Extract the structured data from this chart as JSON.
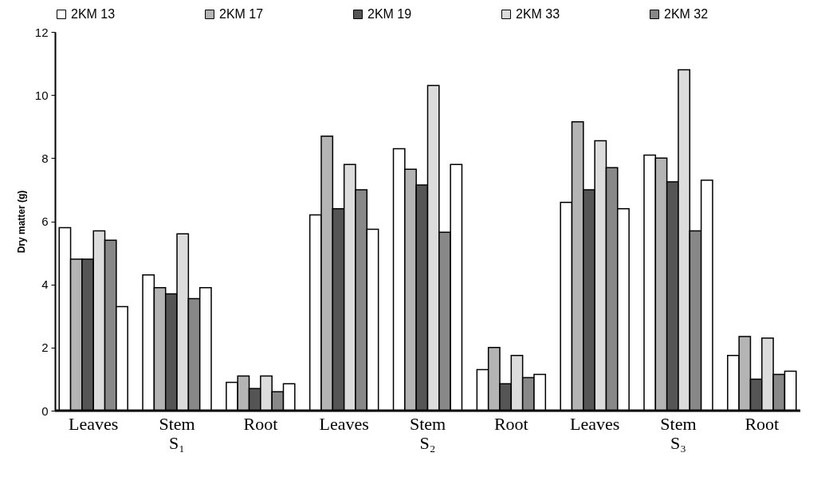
{
  "chart_data": {
    "type": "bar",
    "ylabel": "Dry matter (g)",
    "categories": [
      "Leaves",
      "Stem",
      "Root",
      "Leaves",
      "Stem",
      "Root",
      "Leaves",
      "Stem",
      "Root"
    ],
    "annotations": [
      "S₁",
      "S₂",
      "S₃"
    ],
    "series": [
      {
        "name": "2KM 13",
        "color": "#ffffff",
        "values": [
          5.8,
          4.3,
          0.9,
          6.2,
          8.3,
          1.3,
          6.6,
          8.1,
          1.75
        ]
      },
      {
        "name": "2KM 17",
        "color": "#b4b4b4",
        "values": [
          4.8,
          3.9,
          1.1,
          8.7,
          7.65,
          2.0,
          9.15,
          8.0,
          2.35
        ]
      },
      {
        "name": "2KM 19",
        "color": "#555555",
        "values": [
          4.8,
          3.7,
          0.7,
          6.4,
          7.15,
          0.85,
          7.0,
          7.25,
          1.0
        ]
      },
      {
        "name": "2KM 33",
        "color": "#dcdcdc",
        "values": [
          5.7,
          5.6,
          1.1,
          7.8,
          10.3,
          1.75,
          8.55,
          10.8,
          2.3
        ]
      },
      {
        "name": "2KM 32",
        "color": "#888888",
        "values": [
          5.4,
          3.55,
          0.6,
          7.0,
          5.65,
          1.05,
          7.7,
          5.7,
          1.15
        ]
      },
      {
        "color": "#ffffff",
        "values": [
          3.3,
          3.9,
          0.85,
          5.75,
          7.8,
          1.15,
          6.4,
          7.3,
          1.25
        ]
      }
    ],
    "ylim": [
      0,
      12
    ],
    "yticks": [
      0,
      2,
      4,
      6,
      8,
      10,
      12
    ],
    "grid": false,
    "legend": "top"
  }
}
